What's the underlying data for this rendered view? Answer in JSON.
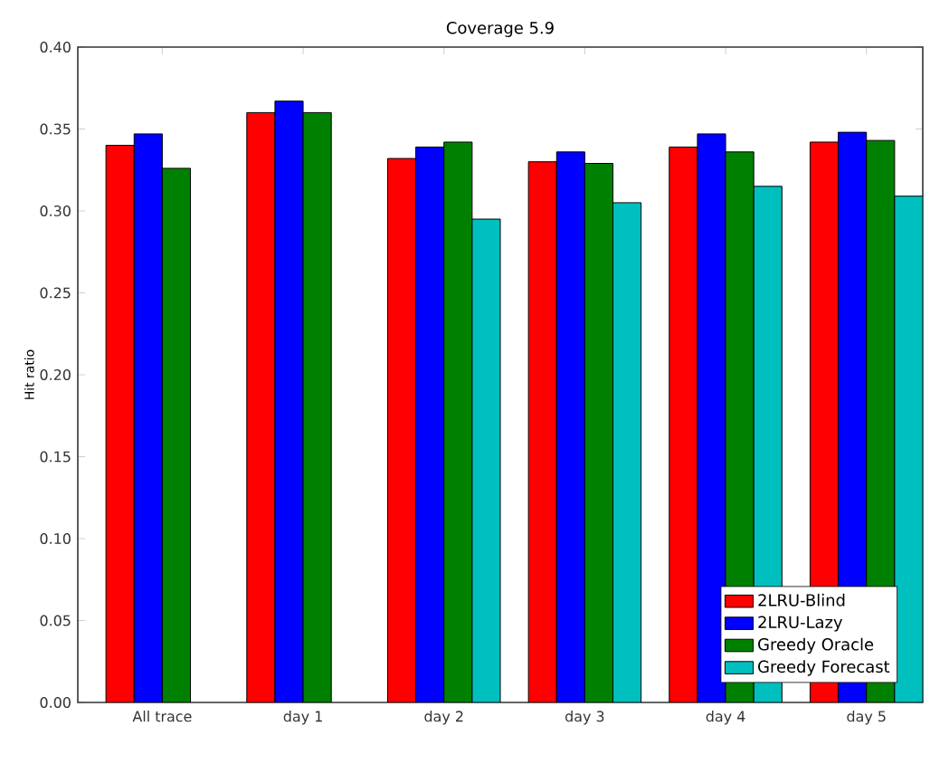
{
  "chart_data": {
    "type": "bar",
    "title": "Coverage 5.9",
    "ylabel": "Hit ratio",
    "categories": [
      "All trace",
      "day 1",
      "day 2",
      "day 3",
      "day 4",
      "day 5"
    ],
    "series": [
      {
        "name": "2LRU-Blind",
        "color": "#ff0000",
        "values": [
          0.34,
          0.36,
          0.332,
          0.33,
          0.339,
          0.342
        ]
      },
      {
        "name": "2LRU-Lazy",
        "color": "#0000ff",
        "values": [
          0.347,
          0.367,
          0.339,
          0.336,
          0.347,
          0.348
        ]
      },
      {
        "name": "Greedy Oracle",
        "color": "#008000",
        "values": [
          0.326,
          0.36,
          0.342,
          0.329,
          0.336,
          0.343
        ]
      },
      {
        "name": "Greedy Forecast",
        "color": "#00bfbf",
        "values": [
          null,
          null,
          0.295,
          0.305,
          0.315,
          0.309
        ]
      }
    ],
    "ylim": [
      0,
      0.4
    ],
    "yticks": [
      {
        "value": 0,
        "label": "0.00"
      },
      {
        "value": 0.05,
        "label": "0.05"
      },
      {
        "value": 0.1,
        "label": "0.10"
      },
      {
        "value": 0.15,
        "label": "0.15"
      },
      {
        "value": 0.2,
        "label": "0.20"
      },
      {
        "value": 0.25,
        "label": "0.25"
      },
      {
        "value": 0.3,
        "label": "0.30"
      },
      {
        "value": 0.35,
        "label": "0.35"
      },
      {
        "value": 0.4,
        "label": "0.40"
      }
    ],
    "legend": "bottom right"
  }
}
